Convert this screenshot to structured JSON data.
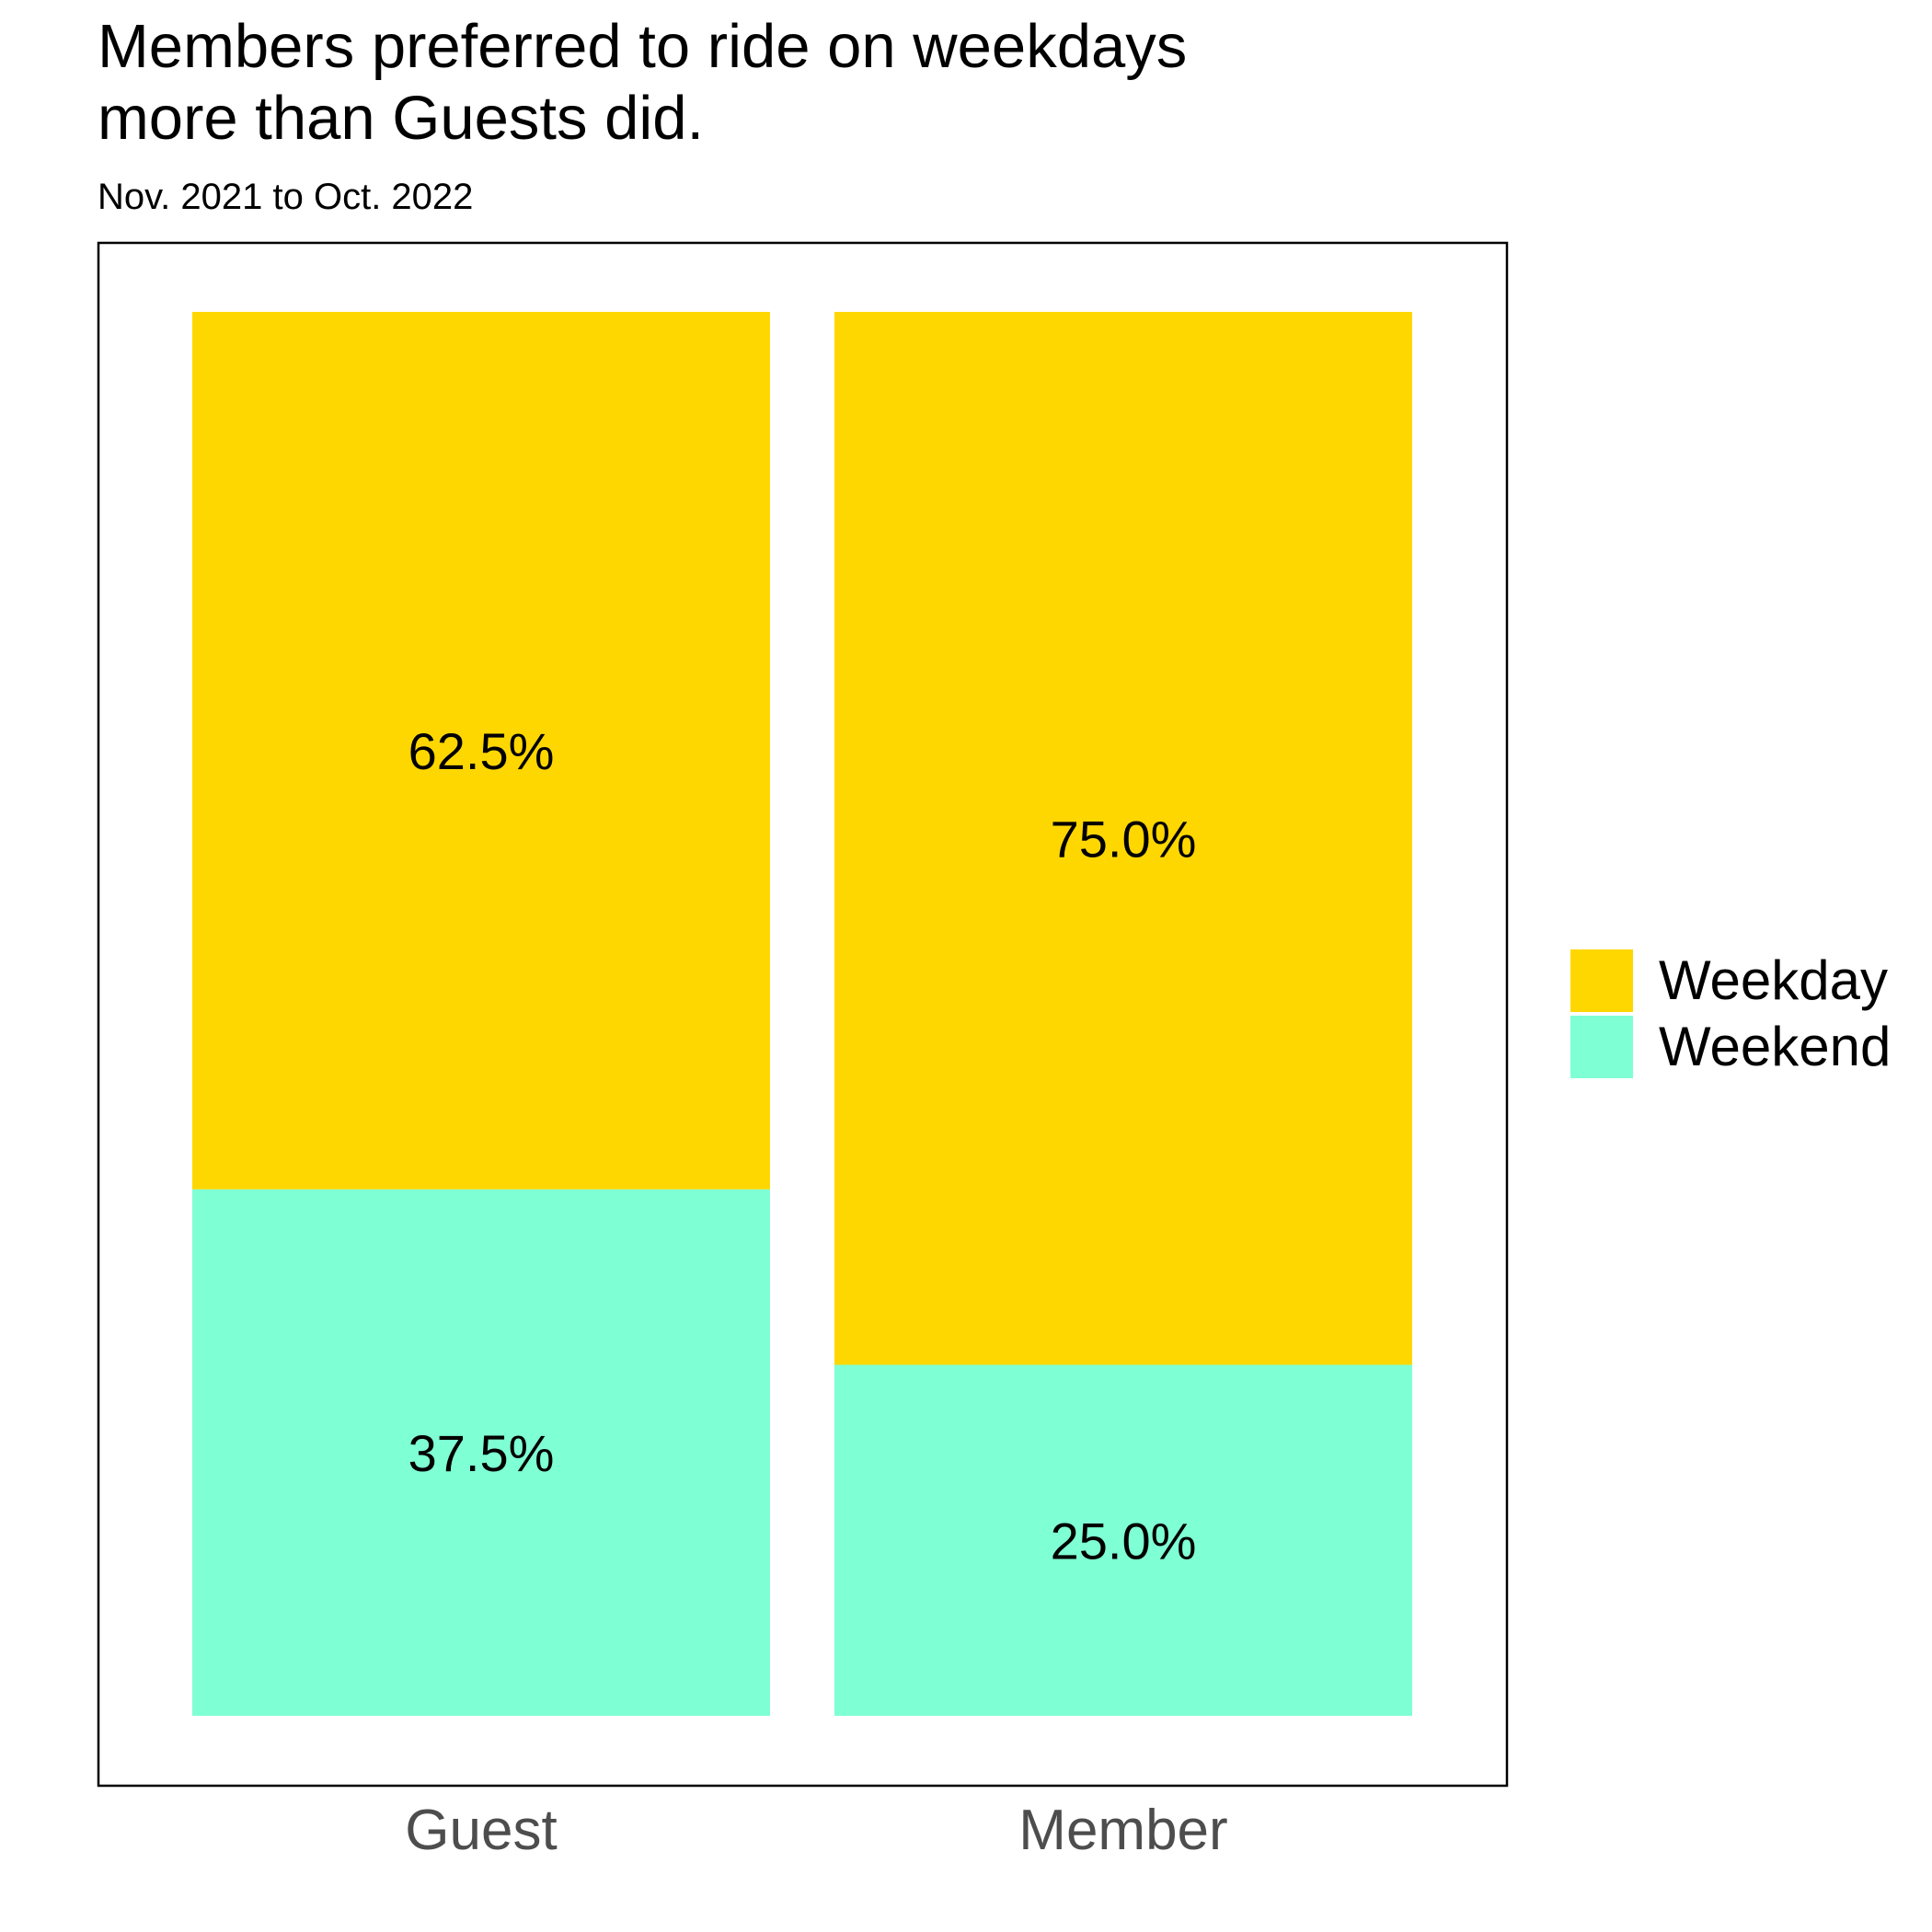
{
  "chart_data": {
    "type": "bar",
    "stacked": true,
    "percent_stacked": true,
    "title": "Members preferred to ride on weekdays\nmore than Guests did.",
    "subtitle": "Nov. 2021 to Oct. 2022",
    "xlabel": "",
    "ylabel": "",
    "ylim": [
      0,
      1
    ],
    "grid": false,
    "legend_position": "right",
    "categories": [
      "Guest",
      "Member"
    ],
    "series": [
      {
        "name": "Weekday",
        "color": "#FFD700",
        "values": [
          0.625,
          0.75
        ],
        "labels": [
          "62.5%",
          "75.0%"
        ]
      },
      {
        "name": "Weekend",
        "color": "#7FFFD4",
        "values": [
          0.375,
          0.25
        ],
        "labels": [
          "37.5%",
          "25.0%"
        ]
      }
    ]
  }
}
